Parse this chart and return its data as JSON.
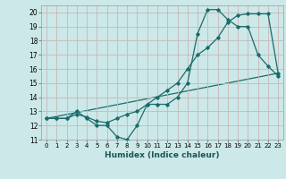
{
  "title": "",
  "xlabel": "Humidex (Indice chaleur)",
  "bg_color": "#cce8e8",
  "grid_color": "#c8b8b8",
  "line_color": "#1a6b6b",
  "xlim": [
    -0.5,
    23.5
  ],
  "ylim": [
    11,
    20.5
  ],
  "xticks": [
    0,
    1,
    2,
    3,
    4,
    5,
    6,
    7,
    8,
    9,
    10,
    11,
    12,
    13,
    14,
    15,
    16,
    17,
    18,
    19,
    20,
    21,
    22,
    23
  ],
  "yticks": [
    11,
    12,
    13,
    14,
    15,
    16,
    17,
    18,
    19,
    20
  ],
  "line1_x": [
    0,
    1,
    2,
    3,
    4,
    5,
    6,
    7,
    8,
    9,
    10,
    11,
    12,
    13,
    14,
    15,
    16,
    17,
    18,
    19,
    20,
    21,
    22,
    23
  ],
  "line1_y": [
    12.5,
    12.5,
    12.5,
    13.0,
    12.5,
    12.0,
    12.0,
    11.2,
    11.0,
    12.0,
    13.5,
    13.5,
    13.5,
    14.0,
    15.0,
    18.5,
    20.2,
    20.2,
    19.5,
    19.0,
    19.0,
    17.0,
    16.2,
    15.5
  ],
  "line2_x": [
    0,
    1,
    2,
    3,
    4,
    5,
    6,
    7,
    8,
    9,
    10,
    11,
    12,
    13,
    14,
    15,
    16,
    17,
    18,
    19,
    20,
    21,
    22,
    23
  ],
  "line2_y": [
    12.5,
    12.5,
    12.5,
    12.8,
    12.6,
    12.3,
    12.2,
    12.5,
    12.8,
    13.0,
    13.5,
    14.0,
    14.5,
    15.0,
    16.0,
    17.0,
    17.5,
    18.2,
    19.3,
    19.8,
    19.9,
    19.9,
    19.9,
    15.7
  ],
  "line3_x": [
    0,
    23
  ],
  "line3_y": [
    12.5,
    15.7
  ]
}
